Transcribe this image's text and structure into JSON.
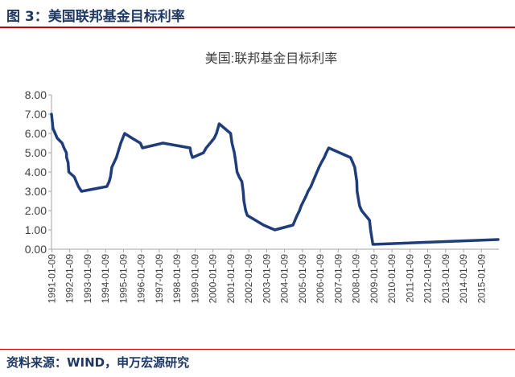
{
  "figure": {
    "label": "图 3：美国联邦基金目标利率",
    "source": "资料来源：WIND，申万宏源研究"
  },
  "colors": {
    "line": "#1f3d7a",
    "axis": "#a6a6a6",
    "text": "#404040",
    "accent": "#c00000",
    "heading": "#1f3864"
  },
  "chart_data": {
    "type": "line",
    "title": "美国:联邦基金目标利率",
    "xlabel": "",
    "ylabel": "",
    "ylim": [
      0,
      8
    ],
    "yticks": [
      "0.00",
      "1.00",
      "2.00",
      "3.00",
      "4.00",
      "5.00",
      "6.00",
      "7.00",
      "8.00"
    ],
    "xticks": [
      "1991-01-09",
      "1992-01-09",
      "1993-01-09",
      "1994-01-09",
      "1995-01-09",
      "1996-01-09",
      "1997-01-09",
      "1998-01-09",
      "1999-01-09",
      "2000-01-09",
      "2001-01-09",
      "2002-01-09",
      "2003-01-09",
      "2004-01-09",
      "2005-01-09",
      "2006-01-09",
      "2007-01-09",
      "2008-01-09",
      "2009-01-09",
      "2010-01-09",
      "2011-01-09",
      "2012-01-09",
      "2013-01-09",
      "2014-01-09",
      "2015-01-09"
    ],
    "grid": false,
    "legend": "none",
    "series": [
      {
        "x": [
          "1991-01-01",
          "1991-02-01",
          "1991-04-30",
          "1991-08-06",
          "1991-09-13",
          "1991-10-31",
          "1991-11-06",
          "1991-12-06",
          "1991-12-20",
          "1992-04-09",
          "1992-07-02",
          "1992-09-04",
          "1994-02-04",
          "1994-03-22",
          "1994-04-18",
          "1994-05-17",
          "1994-08-16",
          "1994-11-15",
          "1995-02-01",
          "1995-07-06",
          "1995-12-19",
          "1996-01-31",
          "1997-03-25",
          "1998-09-29",
          "1998-10-15",
          "1998-11-17",
          "1999-06-30",
          "1999-08-24",
          "1999-11-16",
          "2000-02-02",
          "2000-03-21",
          "2000-05-16",
          "2001-01-03",
          "2001-01-31",
          "2001-03-20",
          "2001-04-18",
          "2001-05-15",
          "2001-06-27",
          "2001-08-21",
          "2001-09-17",
          "2001-10-02",
          "2001-11-06",
          "2001-12-11",
          "2002-11-06",
          "2003-06-25",
          "2004-06-30",
          "2004-08-10",
          "2004-09-21",
          "2004-11-10",
          "2004-12-14",
          "2005-02-02",
          "2005-03-22",
          "2005-05-03",
          "2005-06-30",
          "2005-08-09",
          "2005-09-20",
          "2005-11-01",
          "2005-12-13",
          "2006-01-31",
          "2006-03-28",
          "2006-05-10",
          "2006-06-29",
          "2007-09-18",
          "2007-10-31",
          "2007-12-11",
          "2008-01-22",
          "2008-01-30",
          "2008-03-18",
          "2008-04-30",
          "2008-10-08",
          "2008-10-29",
          "2008-12-16",
          "2015-12-16"
        ],
        "values": [
          7.0,
          6.25,
          5.75,
          5.5,
          5.25,
          5.0,
          4.75,
          4.5,
          4.0,
          3.75,
          3.25,
          3.0,
          3.25,
          3.5,
          3.75,
          4.25,
          4.75,
          5.5,
          6.0,
          5.75,
          5.5,
          5.25,
          5.5,
          5.25,
          5.0,
          4.75,
          5.0,
          5.25,
          5.5,
          5.75,
          6.0,
          6.5,
          6.0,
          5.5,
          5.0,
          4.5,
          4.0,
          3.75,
          3.5,
          3.0,
          2.5,
          2.0,
          1.75,
          1.25,
          1.0,
          1.25,
          1.5,
          1.75,
          2.0,
          2.25,
          2.5,
          2.75,
          3.0,
          3.25,
          3.5,
          3.75,
          4.0,
          4.25,
          4.5,
          4.75,
          5.0,
          5.25,
          4.75,
          4.5,
          4.25,
          3.5,
          3.0,
          2.25,
          2.0,
          1.5,
          1.0,
          0.25,
          0.5
        ]
      }
    ]
  }
}
